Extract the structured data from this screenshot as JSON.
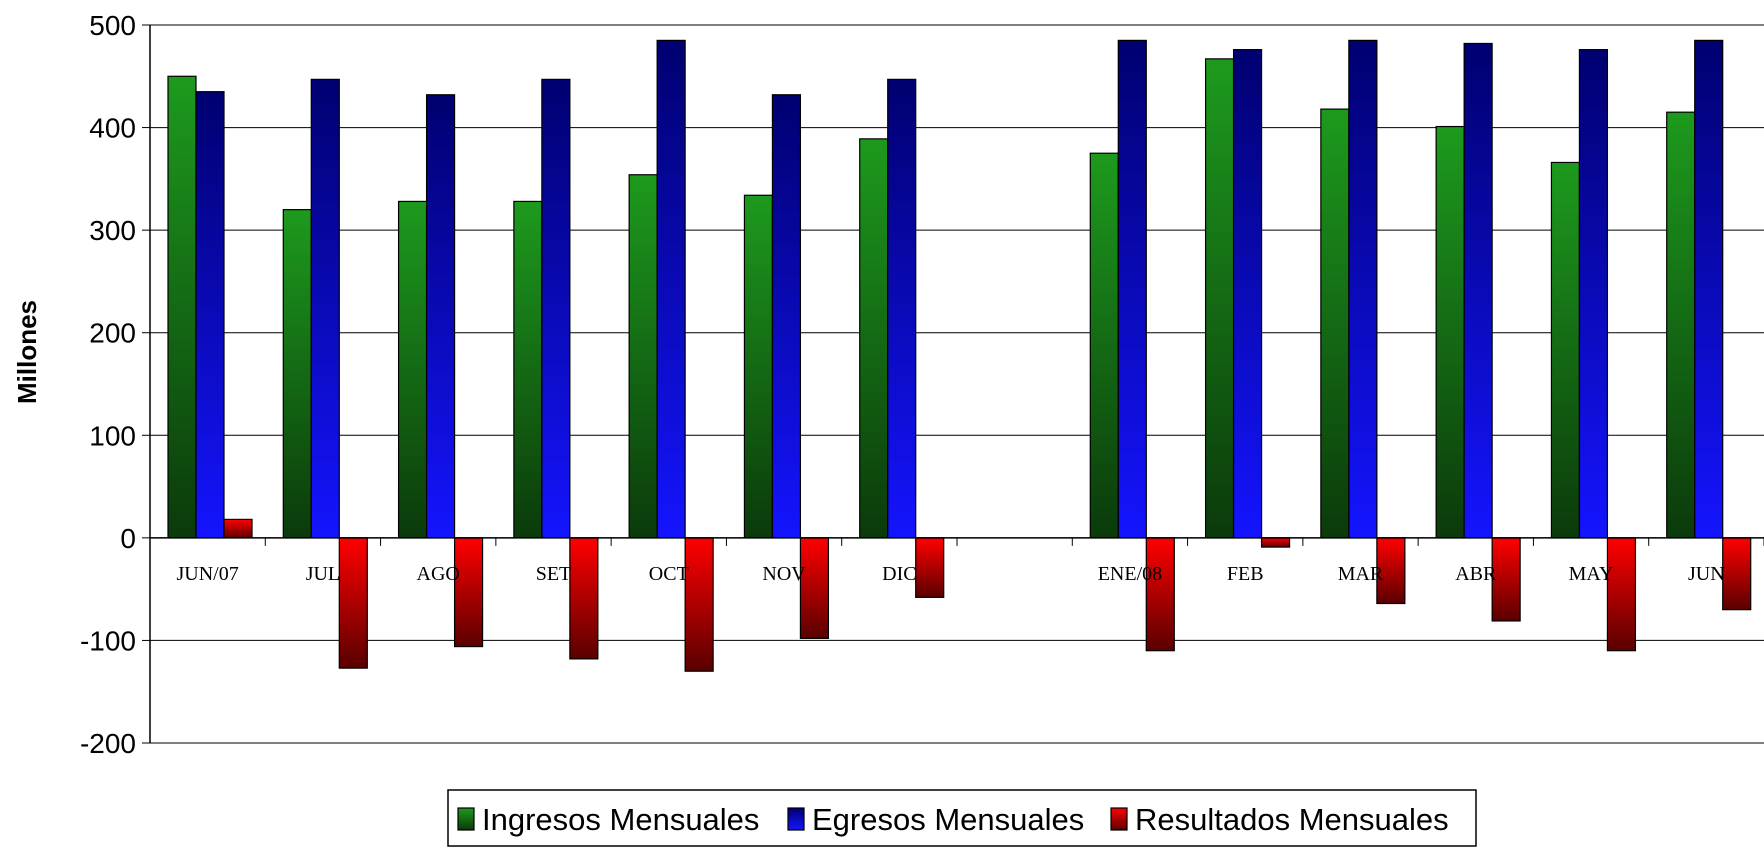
{
  "chart_data": {
    "type": "bar",
    "title": "",
    "xlabel": "",
    "ylabel": "Millones",
    "ylim": [
      -200,
      500
    ],
    "yticks": [
      500,
      400,
      300,
      200,
      100,
      0,
      -100,
      -200
    ],
    "ytick_labels": [
      "500",
      "400",
      "300",
      "200",
      "100",
      "0",
      "-100",
      "-200"
    ],
    "grid": true,
    "legend_position": "bottom",
    "categories": [
      "JUN/07",
      "JUL",
      "AGO",
      "SET",
      "OCT",
      "NOV",
      "DIC",
      "",
      "ENE/08",
      "FEB",
      "MAR",
      "ABR",
      "MAY",
      "JUN"
    ],
    "series": [
      {
        "name": "Ingresos Mensuales",
        "color": "#1a8f1a",
        "values": [
          450,
          320,
          328,
          328,
          354,
          334,
          389,
          null,
          375,
          467,
          418,
          401,
          366,
          415
        ]
      },
      {
        "name": "Egresos Mensuales",
        "color": "#1010ff",
        "values": [
          435,
          447,
          432,
          447,
          485,
          432,
          447,
          null,
          485,
          476,
          485,
          482,
          476,
          485
        ]
      },
      {
        "name": "Resultados Mensuales",
        "color": "#ff0000",
        "values": [
          18,
          -127,
          -106,
          -118,
          -130,
          -98,
          -58,
          null,
          -110,
          -9,
          -64,
          -81,
          -110,
          -70
        ]
      }
    ]
  }
}
